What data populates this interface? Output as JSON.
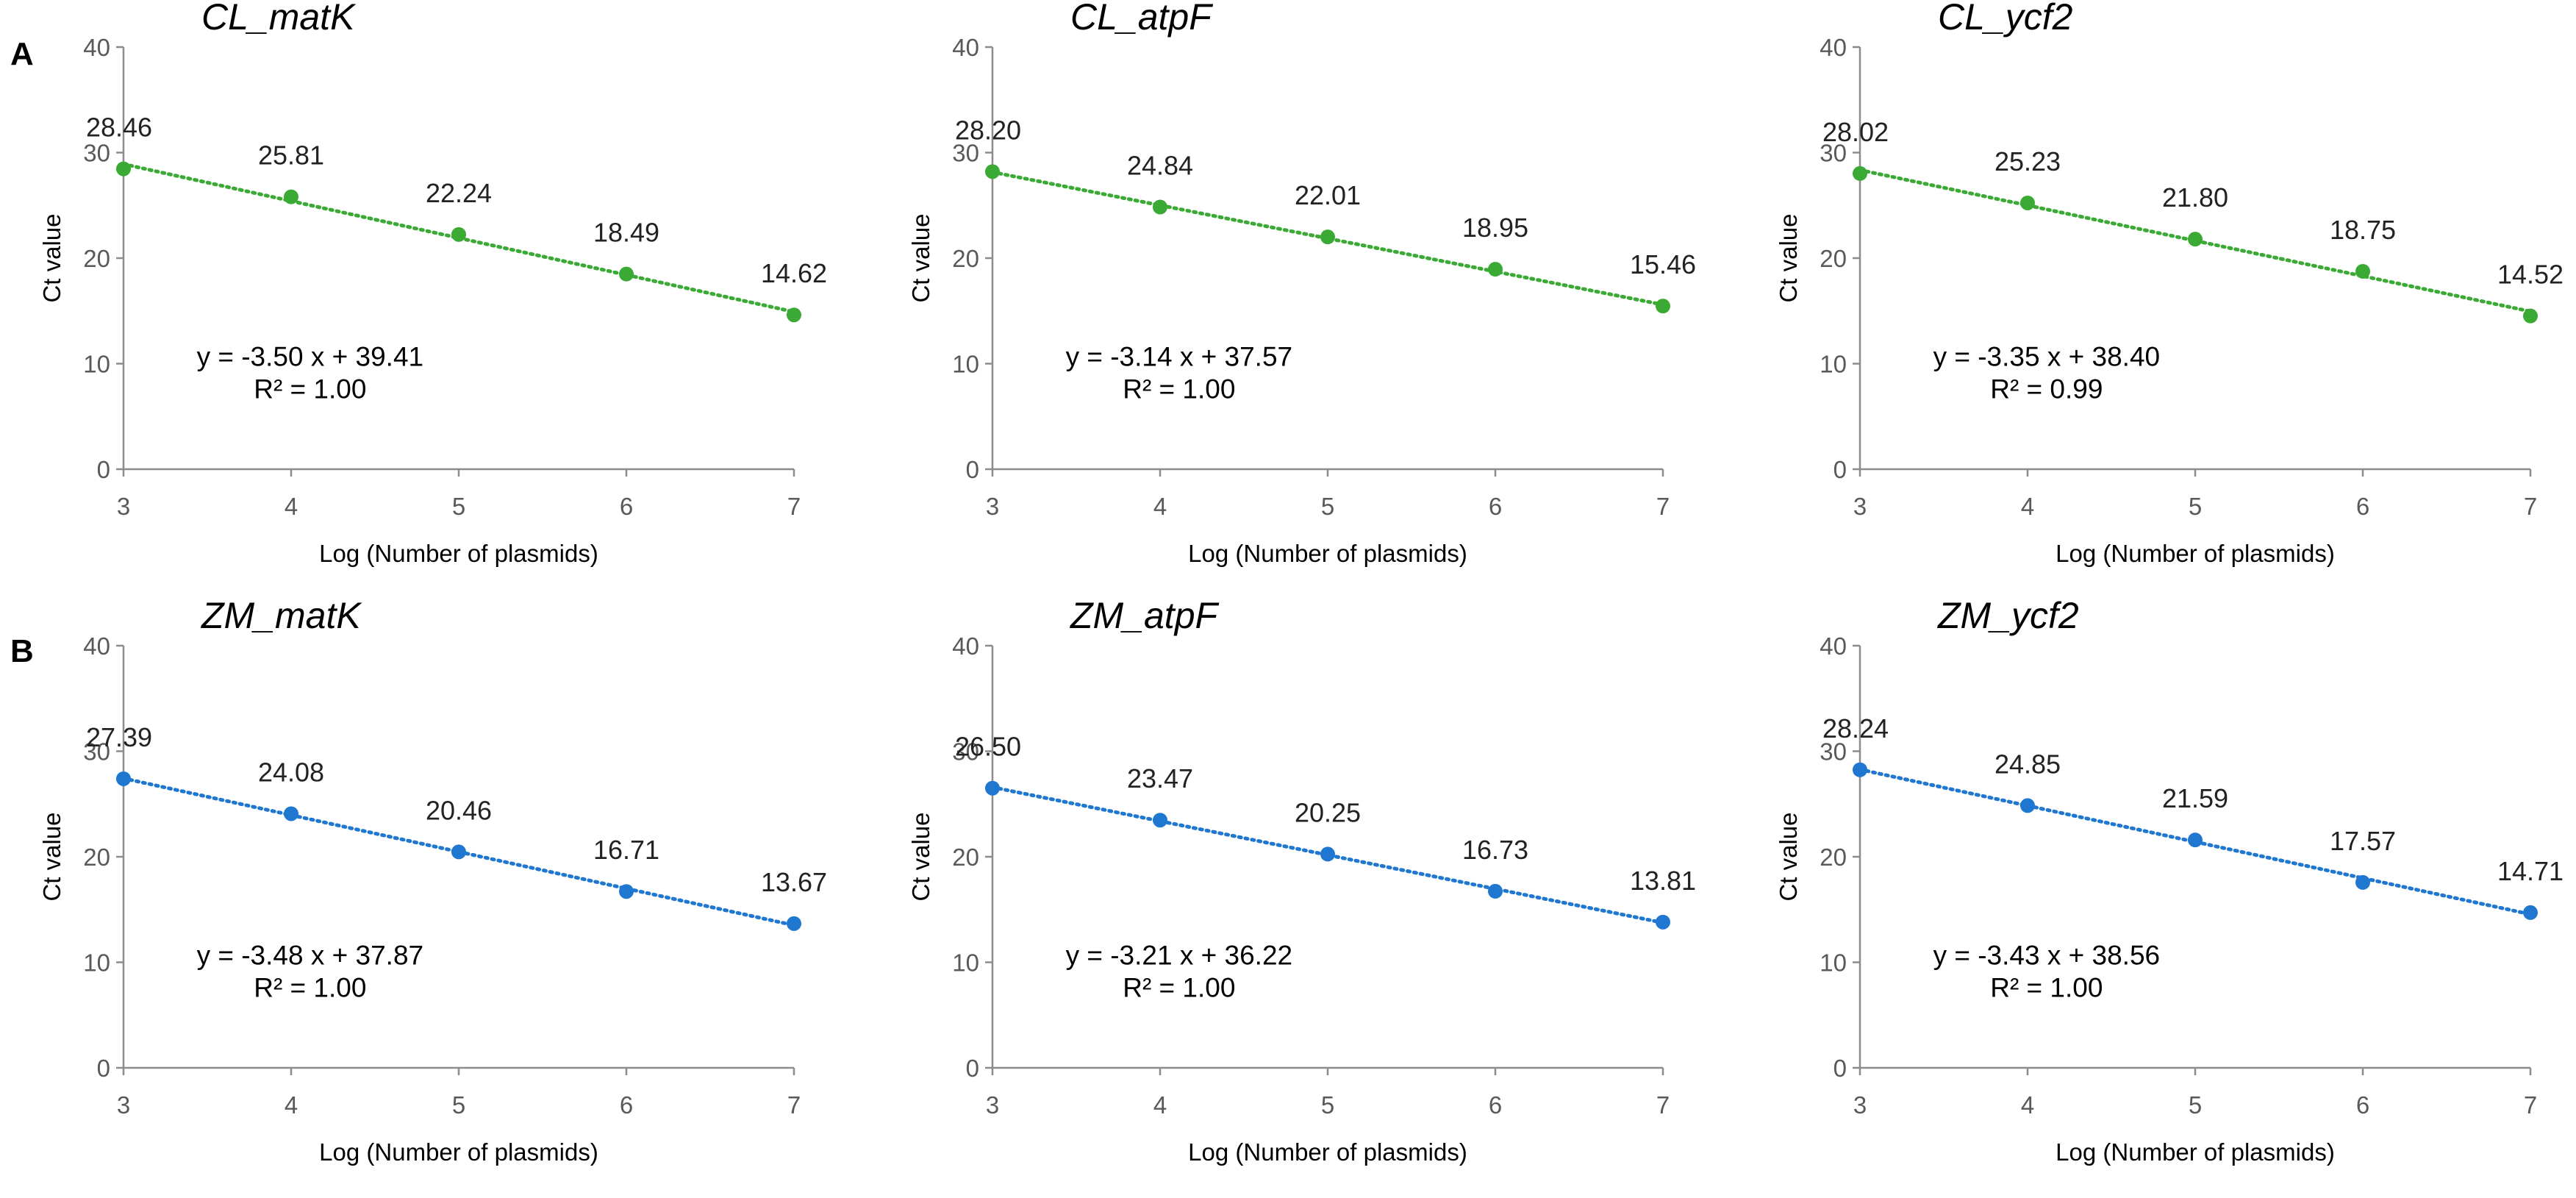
{
  "panels": [
    {
      "letter": "A"
    },
    {
      "letter": "B"
    }
  ],
  "chart_data": [
    {
      "type": "scatter",
      "title": "CL_matK",
      "xlabel": "Log (Number of plasmids)",
      "ylabel": "Ct value",
      "xlim": [
        3,
        7
      ],
      "ylim": [
        0,
        40
      ],
      "xticks": [
        "3",
        "4",
        "5",
        "6",
        "7"
      ],
      "yticks": [
        "0",
        "10",
        "20",
        "30",
        "40"
      ],
      "color": "#3aaa35",
      "series": [
        {
          "name": "CL_matK",
          "x": [
            3,
            4,
            5,
            6,
            7
          ],
          "values": [
            28.46,
            25.81,
            22.24,
            18.49,
            14.62
          ],
          "labels": [
            "28.46",
            "25.81",
            "22.24",
            "18.49",
            "14.62"
          ]
        }
      ],
      "trendline": {
        "slope": -3.5,
        "intercept": 39.41,
        "equation": "y = -3.50 x + 39.41",
        "r2": "R² = 1.00"
      }
    },
    {
      "type": "scatter",
      "title": "CL_atpF",
      "xlabel": "Log (Number of plasmids)",
      "ylabel": "Ct value",
      "xlim": [
        3,
        7
      ],
      "ylim": [
        0,
        40
      ],
      "xticks": [
        "3",
        "4",
        "5",
        "6",
        "7"
      ],
      "yticks": [
        "0",
        "10",
        "20",
        "30",
        "40"
      ],
      "color": "#3aaa35",
      "series": [
        {
          "name": "CL_atpF",
          "x": [
            3,
            4,
            5,
            6,
            7
          ],
          "values": [
            28.2,
            24.84,
            22.01,
            18.95,
            15.46
          ],
          "labels": [
            "28.20",
            "24.84",
            "22.01",
            "18.95",
            "15.46"
          ]
        }
      ],
      "trendline": {
        "slope": -3.14,
        "intercept": 37.57,
        "equation": "y = -3.14 x + 37.57",
        "r2": "R² = 1.00"
      }
    },
    {
      "type": "scatter",
      "title": "CL_ycf2",
      "xlabel": "Log (Number of plasmids)",
      "ylabel": "Ct value",
      "xlim": [
        3,
        7
      ],
      "ylim": [
        0,
        40
      ],
      "xticks": [
        "3",
        "4",
        "5",
        "6",
        "7"
      ],
      "yticks": [
        "0",
        "10",
        "20",
        "30",
        "40"
      ],
      "color": "#3aaa35",
      "series": [
        {
          "name": "CL_ycf2",
          "x": [
            3,
            4,
            5,
            6,
            7
          ],
          "values": [
            28.02,
            25.23,
            21.8,
            18.75,
            14.52
          ],
          "labels": [
            "28.02",
            "25.23",
            "21.80",
            "18.75",
            "14.52"
          ]
        }
      ],
      "trendline": {
        "slope": -3.35,
        "intercept": 38.4,
        "equation": "y = -3.35 x + 38.40",
        "r2": "R² = 0.99"
      }
    },
    {
      "type": "scatter",
      "title": "ZM_matK",
      "xlabel": "Log (Number of plasmids)",
      "ylabel": "Ct value",
      "xlim": [
        3,
        7
      ],
      "ylim": [
        0,
        40
      ],
      "xticks": [
        "3",
        "4",
        "5",
        "6",
        "7"
      ],
      "yticks": [
        "0",
        "10",
        "20",
        "30",
        "40"
      ],
      "color": "#1f77d0",
      "series": [
        {
          "name": "ZM_matK",
          "x": [
            3,
            4,
            5,
            6,
            7
          ],
          "values": [
            27.39,
            24.08,
            20.46,
            16.71,
            13.67
          ],
          "labels": [
            "27.39",
            "24.08",
            "20.46",
            "16.71",
            "13.67"
          ]
        }
      ],
      "trendline": {
        "slope": -3.48,
        "intercept": 37.87,
        "equation": "y = -3.48 x + 37.87",
        "r2": "R² = 1.00"
      }
    },
    {
      "type": "scatter",
      "title": "ZM_atpF",
      "xlabel": "Log (Number of plasmids)",
      "ylabel": "Ct value",
      "xlim": [
        3,
        7
      ],
      "ylim": [
        0,
        40
      ],
      "xticks": [
        "3",
        "4",
        "5",
        "6",
        "7"
      ],
      "yticks": [
        "0",
        "10",
        "20",
        "30",
        "40"
      ],
      "color": "#1f77d0",
      "series": [
        {
          "name": "ZM_atpF",
          "x": [
            3,
            4,
            5,
            6,
            7
          ],
          "values": [
            26.5,
            23.47,
            20.25,
            16.73,
            13.81
          ],
          "labels": [
            "26.50",
            "23.47",
            "20.25",
            "16.73",
            "13.81"
          ]
        }
      ],
      "trendline": {
        "slope": -3.21,
        "intercept": 36.22,
        "equation": "y = -3.21 x + 36.22",
        "r2": "R² = 1.00"
      }
    },
    {
      "type": "scatter",
      "title": "ZM_ycf2",
      "xlabel": "Log (Number of plasmids)",
      "ylabel": "Ct value",
      "xlim": [
        3,
        7
      ],
      "ylim": [
        0,
        40
      ],
      "xticks": [
        "3",
        "4",
        "5",
        "6",
        "7"
      ],
      "yticks": [
        "0",
        "10",
        "20",
        "30",
        "40"
      ],
      "color": "#1f77d0",
      "series": [
        {
          "name": "ZM_ycf2",
          "x": [
            3,
            4,
            5,
            6,
            7
          ],
          "values": [
            28.24,
            24.85,
            21.59,
            17.57,
            14.71
          ],
          "labels": [
            "28.24",
            "24.85",
            "21.59",
            "17.57",
            "14.71"
          ]
        }
      ],
      "trendline": {
        "slope": -3.43,
        "intercept": 38.56,
        "equation": "y = -3.43 x + 38.56",
        "r2": "R² = 1.00"
      }
    }
  ]
}
